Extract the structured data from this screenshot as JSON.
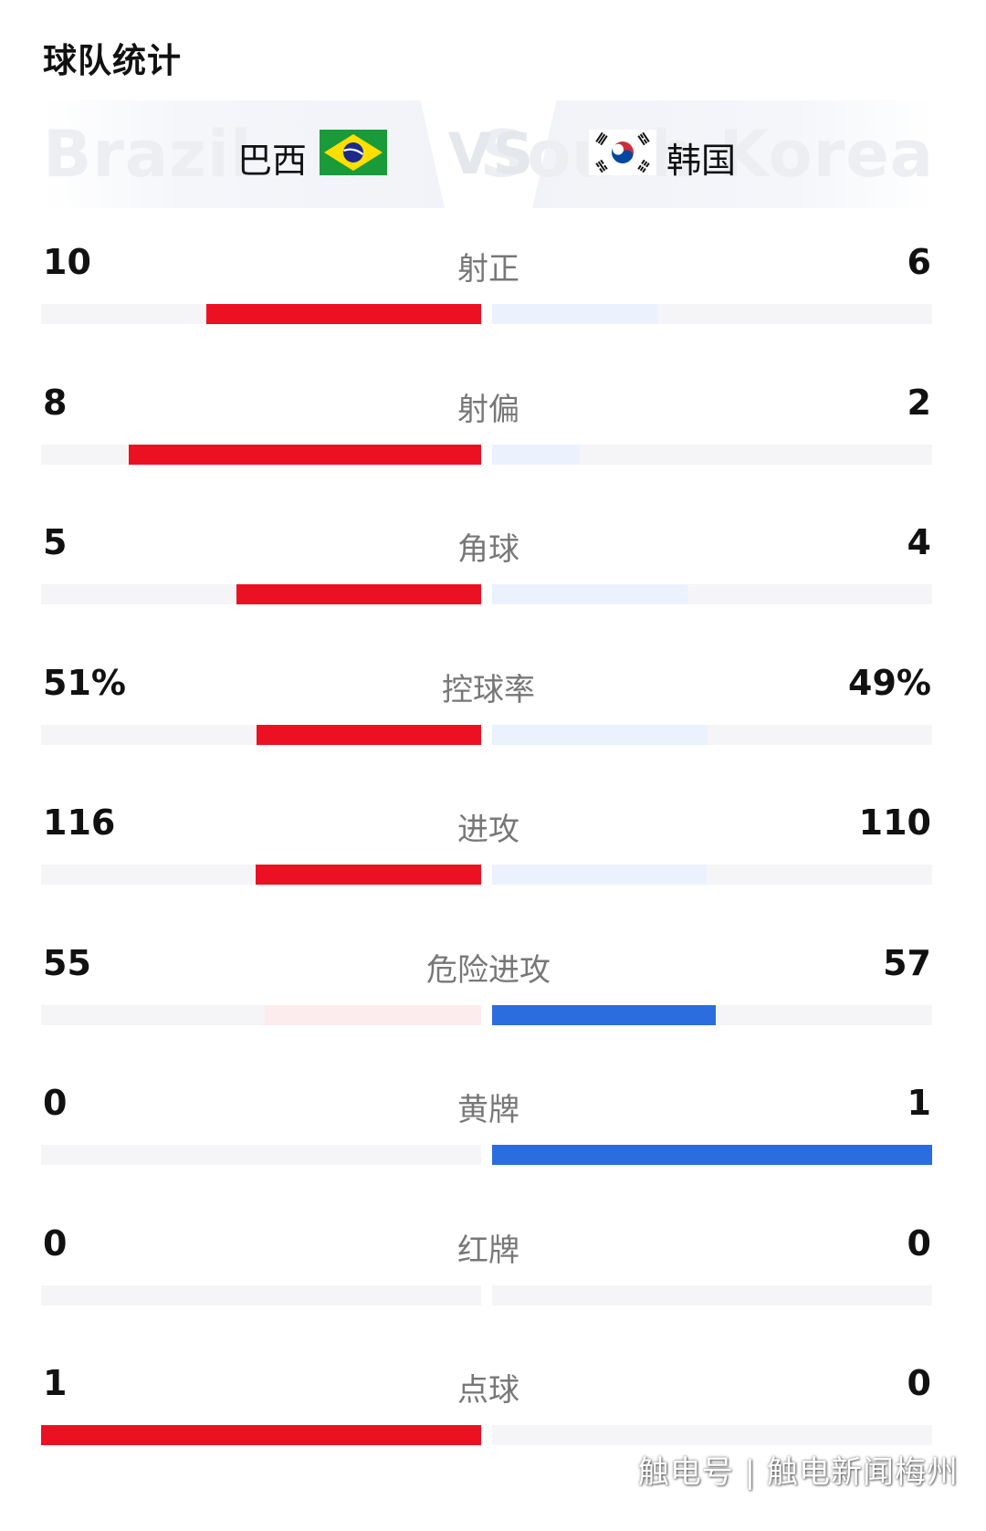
{
  "section_title": "球队统计",
  "header": {
    "home": {
      "name": "巴西",
      "ghost": "Brazil",
      "flag_icon": "brazil-flag-icon"
    },
    "away": {
      "name": "韩国",
      "ghost": "South Korea",
      "flag_icon": "south-korea-flag-icon"
    },
    "vs": "VS"
  },
  "colors": {
    "home_strong": "#ec1023",
    "home_weak": "#fdecee",
    "away_strong": "#2b6cdf",
    "away_weak": "#ebf1fd",
    "track": "#f5f5f7"
  },
  "stats": [
    {
      "label": "射正",
      "home": "10",
      "away": "6",
      "home_frac": 0.625,
      "away_frac": 0.375,
      "leader": "home"
    },
    {
      "label": "射偏",
      "home": "8",
      "away": "2",
      "home_frac": 0.8,
      "away_frac": 0.2,
      "leader": "home"
    },
    {
      "label": "角球",
      "home": "5",
      "away": "4",
      "home_frac": 0.556,
      "away_frac": 0.444,
      "leader": "home"
    },
    {
      "label": "控球率",
      "home": "51%",
      "away": "49%",
      "home_frac": 0.51,
      "away_frac": 0.49,
      "leader": "home"
    },
    {
      "label": "进攻",
      "home": "116",
      "away": "110",
      "home_frac": 0.513,
      "away_frac": 0.487,
      "leader": "home"
    },
    {
      "label": "危险进攻",
      "home": "55",
      "away": "57",
      "home_frac": 0.491,
      "away_frac": 0.509,
      "leader": "away"
    },
    {
      "label": "黄牌",
      "home": "0",
      "away": "1",
      "home_frac": 0,
      "away_frac": 1,
      "leader": "away"
    },
    {
      "label": "红牌",
      "home": "0",
      "away": "0",
      "home_frac": 0,
      "away_frac": 0,
      "leader": "none"
    },
    {
      "label": "点球",
      "home": "1",
      "away": "0",
      "home_frac": 1,
      "away_frac": 0,
      "leader": "home"
    }
  ],
  "watermark": "触电号 | 触电新闻梅州"
}
